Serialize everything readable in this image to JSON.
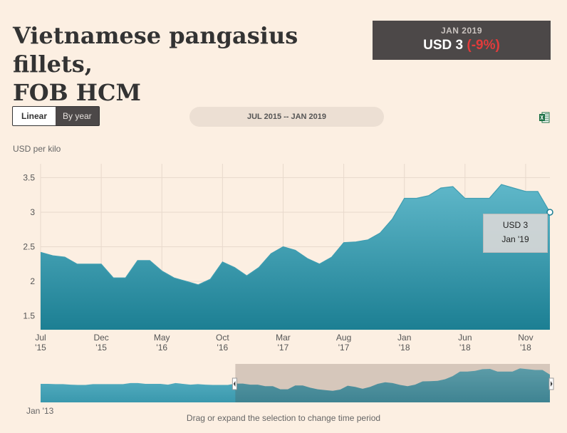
{
  "header": {
    "title_line1": "Vietnamese pangasius fillets,",
    "title_line2": "FOB HCM"
  },
  "price_box": {
    "date": "JAN 2019",
    "value": "USD 3",
    "change": "(-9%)"
  },
  "controls": {
    "linear_label": "Linear",
    "byyear_label": "By year",
    "period_label": "JUL 2015 -- JAN 2019",
    "export_icon": "excel-icon"
  },
  "navigator": {
    "start_label": "Jan '13",
    "hint": "Drag or expand the selection to change time period"
  },
  "tooltip": {
    "value": "USD 3",
    "date": "Jan '19"
  },
  "colors": {
    "area_top": "#5fb7c9",
    "area_bottom": "#1c7f93",
    "background": "#fcefe2",
    "accent_negative": "#e23b3b"
  },
  "chart_data": {
    "type": "area",
    "ylabel": "USD per kilo",
    "ylim": [
      1.3,
      3.7
    ],
    "yticks": [
      1.5,
      2,
      2.5,
      3,
      3.5
    ],
    "ytick_labels": [
      "1.5",
      "2",
      "2.5",
      "3",
      "3.5"
    ],
    "x": [
      "2015-07",
      "2015-08",
      "2015-09",
      "2015-10",
      "2015-11",
      "2015-12",
      "2016-01",
      "2016-02",
      "2016-03",
      "2016-04",
      "2016-05",
      "2016-06",
      "2016-07",
      "2016-08",
      "2016-09",
      "2016-10",
      "2016-11",
      "2016-12",
      "2017-01",
      "2017-02",
      "2017-03",
      "2017-04",
      "2017-05",
      "2017-06",
      "2017-07",
      "2017-08",
      "2017-09",
      "2017-10",
      "2017-11",
      "2017-12",
      "2018-01",
      "2018-02",
      "2018-03",
      "2018-04",
      "2018-05",
      "2018-06",
      "2018-07",
      "2018-08",
      "2018-09",
      "2018-10",
      "2018-11",
      "2018-12",
      "2019-01"
    ],
    "values": [
      2.42,
      2.37,
      2.35,
      2.25,
      2.25,
      2.25,
      2.05,
      2.05,
      2.3,
      2.3,
      2.15,
      2.05,
      2.0,
      1.95,
      2.03,
      2.28,
      2.2,
      2.08,
      2.2,
      2.4,
      2.5,
      2.45,
      2.33,
      2.25,
      2.35,
      2.56,
      2.57,
      2.6,
      2.7,
      2.9,
      3.2,
      3.2,
      3.24,
      3.35,
      3.37,
      3.2,
      3.2,
      3.2,
      3.4,
      3.35,
      3.3,
      3.3,
      3.0
    ],
    "xticks": [
      {
        "index": 0,
        "label": "Jul",
        "year": "'15"
      },
      {
        "index": 5,
        "label": "Dec",
        "year": "'15"
      },
      {
        "index": 10,
        "label": "May",
        "year": "'16"
      },
      {
        "index": 15,
        "label": "Oct",
        "year": "'16"
      },
      {
        "index": 20,
        "label": "Mar",
        "year": "'17"
      },
      {
        "index": 25,
        "label": "Aug",
        "year": "'17"
      },
      {
        "index": 30,
        "label": "Jan",
        "year": "'18"
      },
      {
        "index": 35,
        "label": "Jun",
        "year": "'18"
      },
      {
        "index": 40,
        "label": "Nov",
        "year": "'18"
      }
    ],
    "grid": true,
    "navigator_values": [
      2.4,
      2.4,
      2.38,
      2.38,
      2.35,
      2.33,
      2.33,
      2.38,
      2.38,
      2.38,
      2.38,
      2.38,
      2.45,
      2.45,
      2.4,
      2.4,
      2.4,
      2.35,
      2.45,
      2.4,
      2.35,
      2.38,
      2.35,
      2.33,
      2.33,
      2.33,
      2.42,
      2.42,
      2.35,
      2.35,
      2.25,
      2.25,
      2.05,
      2.05,
      2.3,
      2.3,
      2.15,
      2.05,
      2.0,
      1.95,
      2.03,
      2.28,
      2.2,
      2.08,
      2.2,
      2.4,
      2.5,
      2.45,
      2.33,
      2.25,
      2.35,
      2.56,
      2.57,
      2.6,
      2.7,
      2.9,
      3.2,
      3.2,
      3.24,
      3.35,
      3.37,
      3.2,
      3.2,
      3.2,
      3.4,
      3.35,
      3.3,
      3.3,
      3.0
    ]
  }
}
